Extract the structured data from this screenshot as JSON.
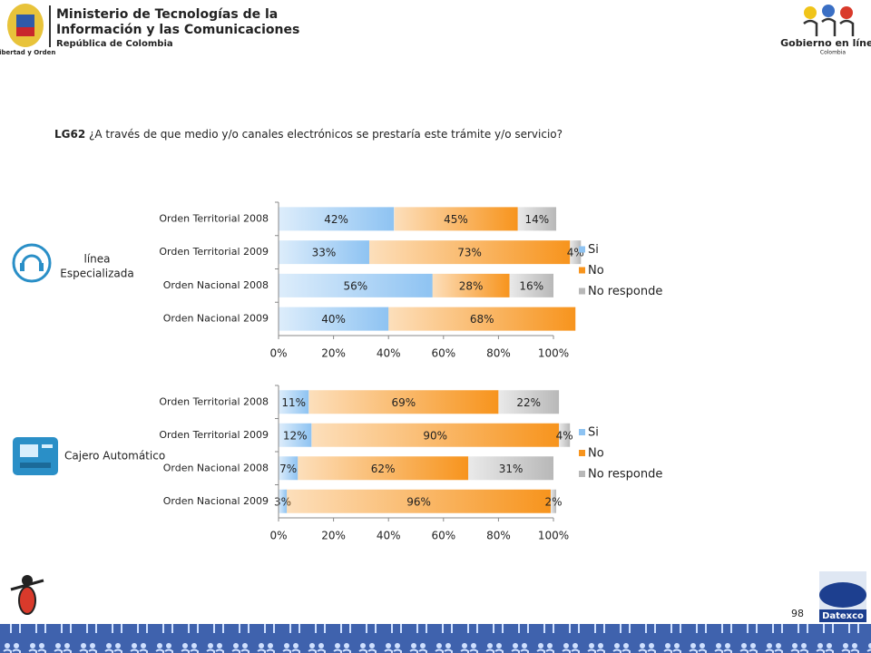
{
  "header": {
    "ministry": [
      "Ministerio de Tecnologías de la",
      "Información y las Comunicaciones"
    ],
    "republic": "República de Colombia",
    "motto": "Libertad y Orden",
    "gov": "Gobierno en línea",
    "gov_country": "Colombia"
  },
  "question": {
    "code": "LG62",
    "text": "¿A través de que medio y/o canales electrónicos se prestaría este trámite y/o servicio?"
  },
  "sections": [
    {
      "label": [
        "línea",
        "Especializada"
      ]
    },
    {
      "label": [
        "Cajero Automático"
      ]
    }
  ],
  "page_number": "98",
  "footer_logo": "Datexco",
  "chart_data": [
    {
      "type": "bar",
      "orientation": "horizontal",
      "stacked": true,
      "legend": "right",
      "categories": [
        "Orden Territorial 2008",
        "Orden Territorial 2009",
        "Orden Nacional 2008",
        "Orden Nacional 2009"
      ],
      "series": [
        {
          "name": "Si",
          "color": "#8ec3f2",
          "values": [
            42,
            33,
            56,
            40
          ],
          "value_labels": [
            "42%",
            "33%",
            "56%",
            "40%"
          ]
        },
        {
          "name": "No",
          "color": "#f7941d",
          "values": [
            45,
            73,
            28,
            68
          ],
          "value_labels": [
            "45%",
            "73%",
            "28%",
            "68%"
          ]
        },
        {
          "name": "No responde",
          "color": "#b8b8b8",
          "values": [
            14,
            4,
            16,
            null
          ],
          "value_labels": [
            "14%",
            "4%",
            "16%",
            null
          ]
        }
      ],
      "xlim": [
        0,
        100
      ],
      "xticks": [
        {
          "value": 0,
          "label": "0%"
        },
        {
          "value": 20,
          "label": "20%"
        },
        {
          "value": 40,
          "label": "40%"
        },
        {
          "value": 60,
          "label": "60%"
        },
        {
          "value": 80,
          "label": "80%"
        },
        {
          "value": 100,
          "label": "100%"
        }
      ]
    },
    {
      "type": "bar",
      "orientation": "horizontal",
      "stacked": true,
      "legend": "right",
      "categories": [
        "Orden Territorial 2008",
        "Orden Territorial 2009",
        "Orden Nacional 2008",
        "Orden Nacional 2009"
      ],
      "series": [
        {
          "name": "Si",
          "color": "#8ec3f2",
          "values": [
            11,
            12,
            7,
            3
          ],
          "value_labels": [
            "11%",
            "12%",
            "7%",
            "3%"
          ]
        },
        {
          "name": "No",
          "color": "#f7941d",
          "values": [
            69,
            90,
            62,
            96
          ],
          "value_labels": [
            "69%",
            "90%",
            "62%",
            "96%"
          ]
        },
        {
          "name": "No responde",
          "color": "#b8b8b8",
          "values": [
            22,
            4,
            31,
            2
          ],
          "value_labels": [
            "22%",
            "4%",
            "31%",
            "2%"
          ]
        }
      ],
      "xlim": [
        0,
        100
      ],
      "xticks": [
        {
          "value": 0,
          "label": "0%"
        },
        {
          "value": 20,
          "label": "20%"
        },
        {
          "value": 40,
          "label": "40%"
        },
        {
          "value": 60,
          "label": "60%"
        },
        {
          "value": 80,
          "label": "80%"
        },
        {
          "value": 100,
          "label": "100%"
        }
      ]
    }
  ]
}
